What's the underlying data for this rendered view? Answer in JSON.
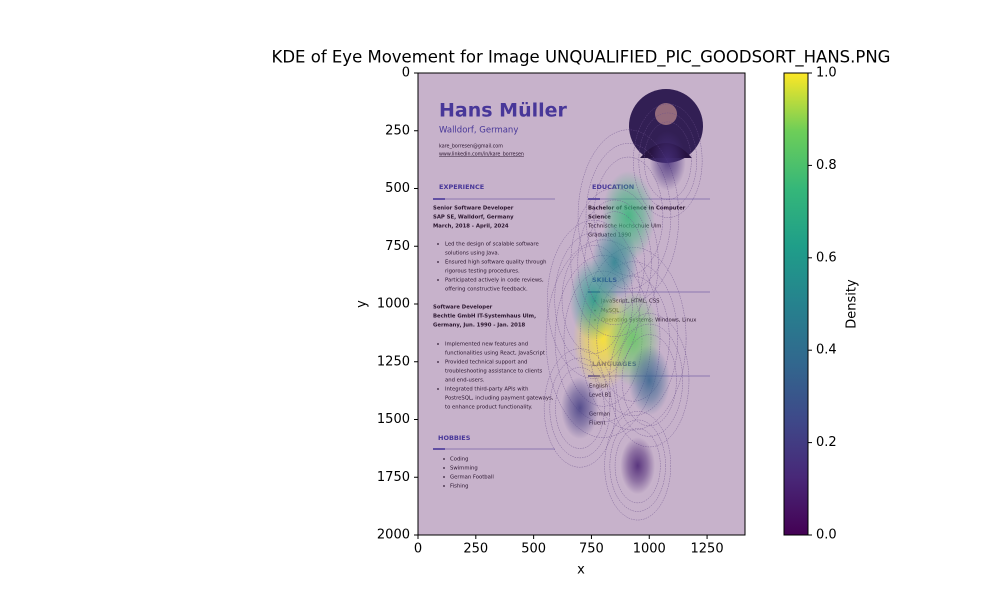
{
  "chart_data": {
    "type": "kde",
    "title": "KDE of Eye Movement for Image UNQUALIFIED_PIC_GOODSORT_HANS.PNG",
    "x_label": "x",
    "y_label": "y",
    "xlim": [
      0,
      1414
    ],
    "ylim": [
      2000,
      0
    ],
    "xticks": [
      0,
      250,
      500,
      750,
      1000,
      1250
    ],
    "yticks": [
      0,
      250,
      500,
      750,
      1000,
      1250,
      1500,
      1750,
      2000
    ],
    "colormap": "viridis",
    "colorbar_label": "Density",
    "clim": [
      0,
      1
    ],
    "colorbar_ticks": [
      {
        "value": 0,
        "label": "0.0"
      },
      0.2,
      0.4,
      0.6,
      0.8,
      {
        "value": 1,
        "label": "1.0"
      }
    ],
    "x": [
      800,
      930,
      910,
      760,
      850,
      1000,
      700,
      1080,
      950
    ],
    "y": [
      1150,
      1150,
      620,
      980,
      820,
      1330,
      1450,
      380,
      1700
    ],
    "values": [
      1.0,
      0.85,
      0.75,
      0.6,
      0.5,
      0.35,
      0.2,
      0.15,
      0.1
    ]
  },
  "image": {
    "name": "Hans Müller",
    "location": "Walldorf, Germany",
    "email": "kare_borresen@gmail.com",
    "linkedin": "www.linkedin.com/in/kare_borresen",
    "experience": {
      "heading": "EXPERIENCE",
      "jobs": [
        {
          "title": "Senior Software Developer",
          "company": "SAP SE, Walldorf, Germany",
          "dates": "March, 2018 - April, 2024",
          "bullets": [
            [
              "Led the design of scalable software",
              "solutions using Java."
            ],
            [
              "Ensured high software quality through",
              "rigorous testing procedures."
            ],
            [
              "Participated actively in code reviews,",
              "offering constructive feedback."
            ]
          ]
        },
        {
          "title": "Software Developer",
          "company": "Bechtle GmbH IT-Systemhaus Ulm,",
          "dates": "Germany, Jun. 1990 - Jan. 2018",
          "bullets": [
            [
              "Implemented new features and",
              "functionalities using React, JavaScript"
            ],
            [
              "Provided technical support and",
              "troubleshooting assistance to clients",
              "and end-users."
            ],
            [
              "Integrated third-party APIs with",
              "PostreSQL, including payment gateways,",
              "to enhance product functionality."
            ]
          ]
        }
      ]
    },
    "hobbies": {
      "heading": "HOBBIES",
      "items": [
        "Coding",
        "Swimming",
        "German Football",
        "Fishing"
      ]
    },
    "education": {
      "heading": "EDUCATION",
      "lines": [
        "Bachelor of Science in Computer",
        "Science",
        "Technische Hochschule Ulm",
        "Graduated 1990"
      ]
    },
    "skills": {
      "heading": "SKILLS",
      "items": [
        "JavaScript, HTML, CSS",
        "MySQL",
        "Operating Systems: Windows, Linux"
      ]
    },
    "languages": {
      "heading": "LANGUAGES",
      "lines": [
        "English",
        "Level B1",
        "German",
        "Fluent"
      ]
    }
  }
}
